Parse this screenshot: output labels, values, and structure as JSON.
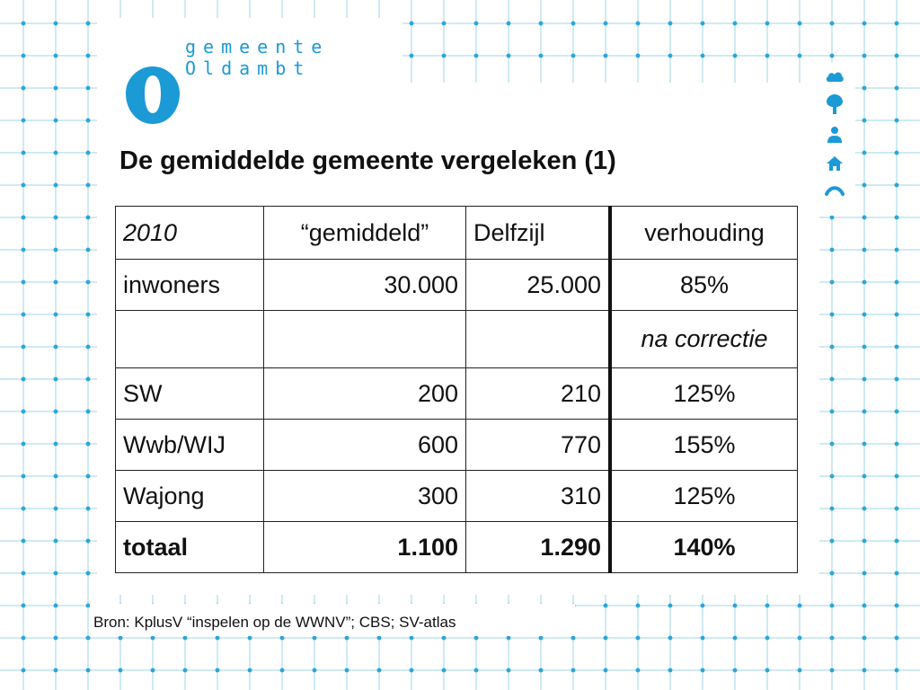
{
  "logo": {
    "line1": "gemeente",
    "line2": "Oldambt",
    "brand_color": "#1b9ad6"
  },
  "side_icons": [
    "cloud-icon",
    "tree-icon",
    "person-icon",
    "house-icon",
    "bridge-icon"
  ],
  "title": "De gemiddelde gemeente vergeleken (1)",
  "table": {
    "header": {
      "year": "2010",
      "gemiddeld": "“gemiddeld”",
      "delfzijl": "Delfzijl",
      "verhouding": "verhouding"
    },
    "inwoners": {
      "label": "inwoners",
      "gemiddeld": "30.000",
      "delfzijl": "25.000",
      "verhouding": "85%"
    },
    "correctie": {
      "note": "na correctie"
    },
    "sw": {
      "label": "SW",
      "gemiddeld": "200",
      "delfzijl": "210",
      "verhouding": "125%"
    },
    "wwb": {
      "label": "Wwb/WIJ",
      "gemiddeld": "600",
      "delfzijl": "770",
      "verhouding": "155%"
    },
    "wajong": {
      "label": "Wajong",
      "gemiddeld": "300",
      "delfzijl": "310",
      "verhouding": "125%"
    },
    "totaal": {
      "label": "totaal",
      "gemiddeld": "1.100",
      "delfzijl": "1.290",
      "verhouding": "140%"
    }
  },
  "source": "Bron: KplusV “inspelen op de WWNV”; CBS; SV-atlas"
}
